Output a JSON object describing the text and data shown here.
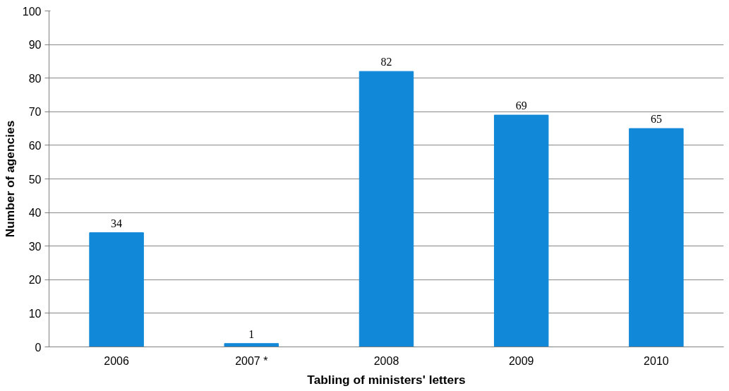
{
  "chart_data": {
    "type": "bar",
    "xlabel": "Tabling of ministers' letters",
    "ylabel": "Number of agencies",
    "categories": [
      "2006",
      "2007 *",
      "2008",
      "2009",
      "2010"
    ],
    "values": [
      34,
      1,
      82,
      69,
      65
    ],
    "color": "#1188d8",
    "ylim": [
      0,
      100
    ],
    "yticks": [
      0,
      10,
      20,
      30,
      40,
      50,
      60,
      70,
      80,
      90,
      100
    ],
    "grid": "y",
    "data_labels": true
  }
}
